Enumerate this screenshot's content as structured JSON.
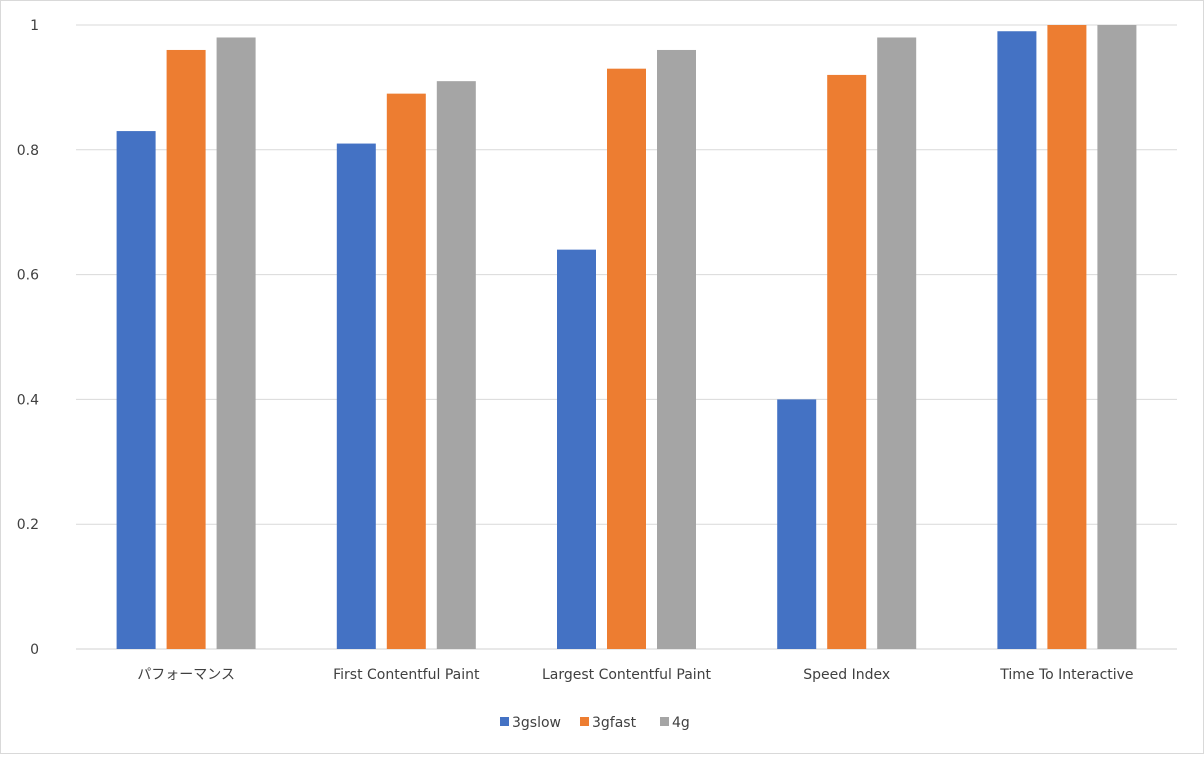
{
  "chart_data": {
    "type": "bar",
    "categories": [
      "パフォーマンス",
      "First Contentful Paint",
      "Largest Contentful Paint",
      "Speed Index",
      "Time To Interactive"
    ],
    "series": [
      {
        "name": "3gslow",
        "color": "#4472C4",
        "values": [
          0.83,
          0.81,
          0.64,
          0.4,
          0.99
        ]
      },
      {
        "name": "3gfast",
        "color": "#ED7D31",
        "values": [
          0.96,
          0.89,
          0.93,
          0.92,
          1.0
        ]
      },
      {
        "name": "4g",
        "color": "#A5A5A5",
        "values": [
          0.98,
          0.91,
          0.96,
          0.98,
          1.0
        ]
      }
    ],
    "yticks": [
      "0",
      "0.2",
      "0.4",
      "0.6",
      "0.8",
      "1"
    ],
    "ylim": [
      0,
      1
    ],
    "grid": true,
    "legend": "bottom-center"
  }
}
